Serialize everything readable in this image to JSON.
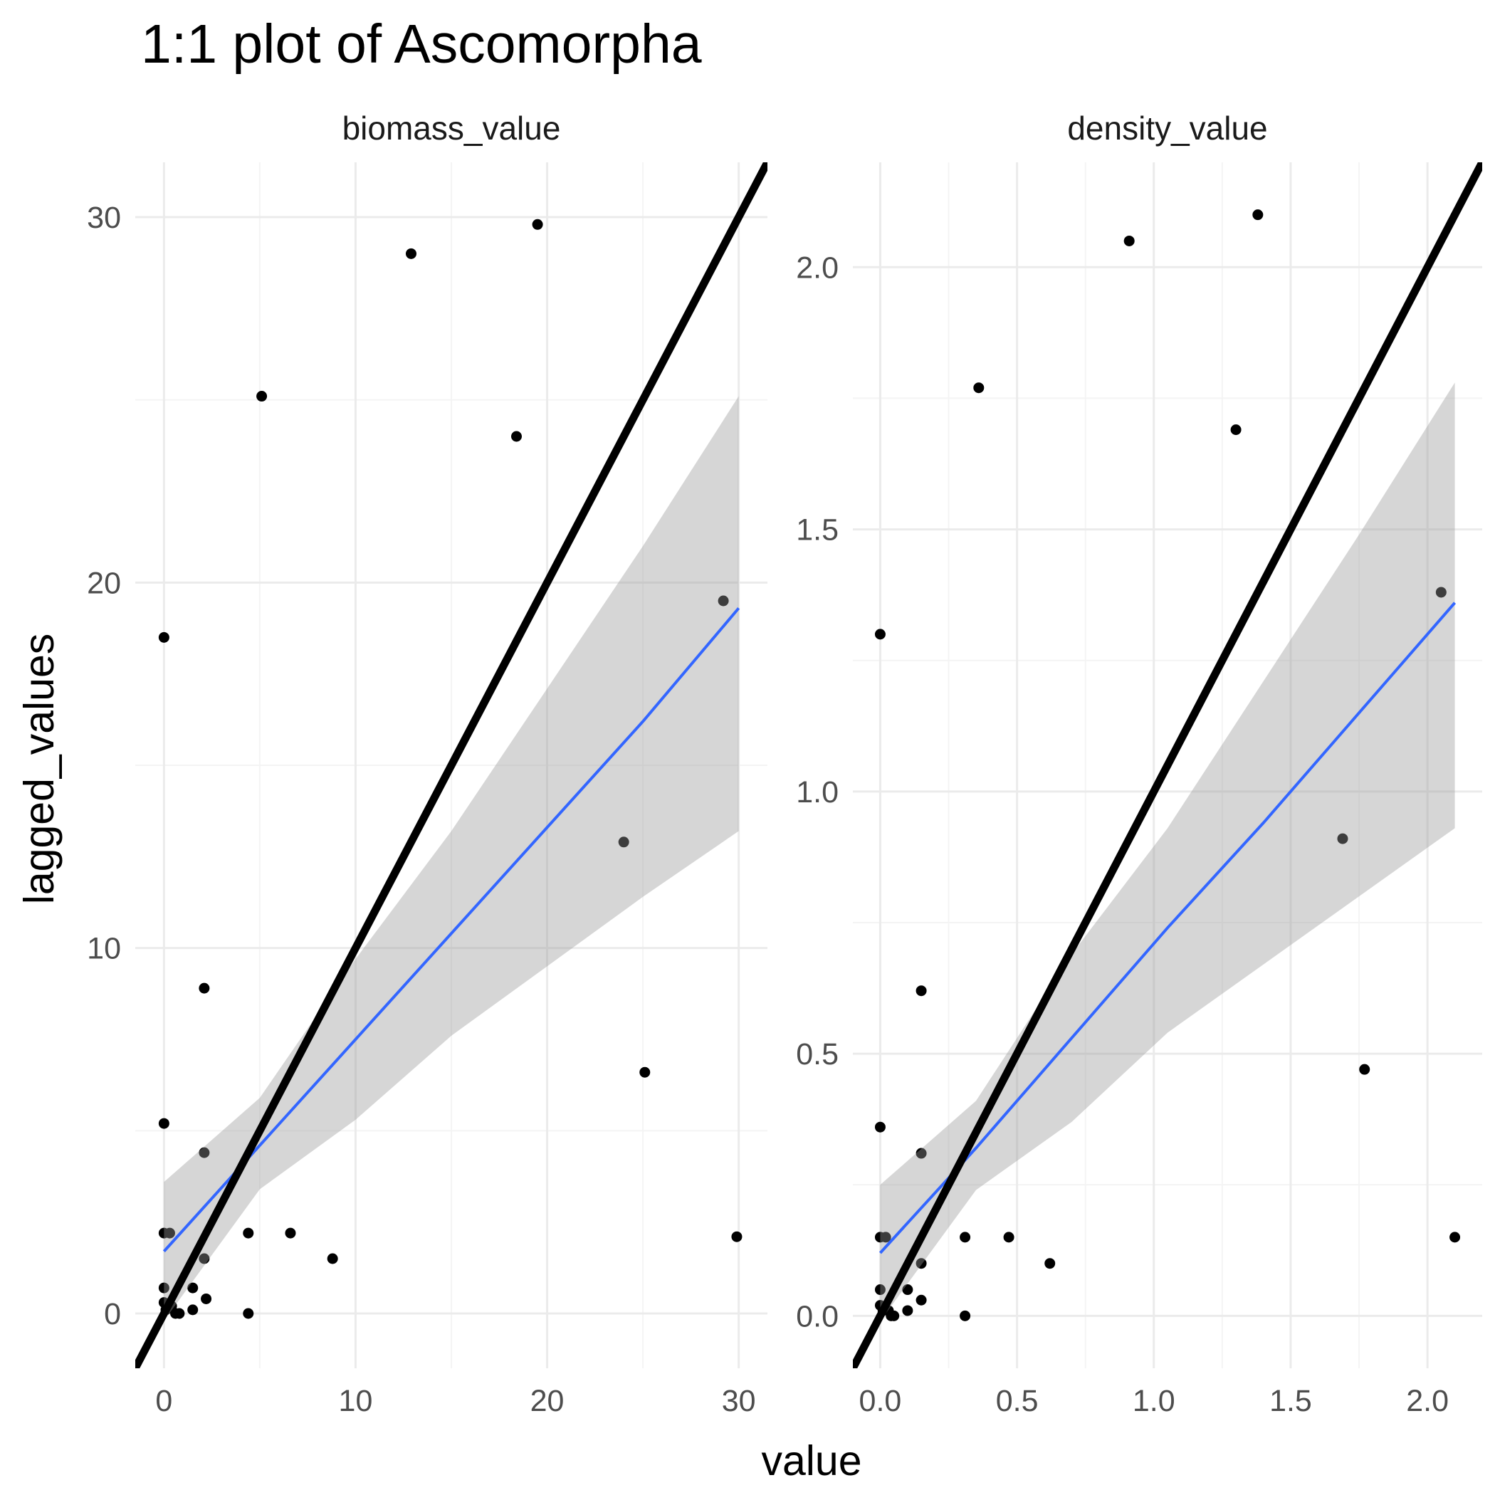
{
  "chart_data": {
    "type": "scatter",
    "title": "1:1 plot of Ascomorpha",
    "xlabel": "value",
    "ylabel": "lagged_values",
    "grid": true,
    "legend": "none",
    "colors": {
      "points": "#000000",
      "identity_line": "#000000",
      "smooth_line": "#3366FF",
      "ribbon": "#999999",
      "grid_major": "#EBEBEB",
      "grid_minor": "#F4F4F4",
      "text": "#4D4D4D"
    },
    "panels": [
      {
        "facet": "biomass_value",
        "xlim": [
          -1.5,
          31.5
        ],
        "ylim": [
          -1.5,
          31.5
        ],
        "x_ticks": [
          0,
          10,
          20,
          30
        ],
        "x_tick_labels": [
          "0",
          "10",
          "20",
          "30"
        ],
        "y_ticks": [
          0,
          10,
          20,
          30
        ],
        "y_tick_labels": [
          "0",
          "10",
          "20",
          "30"
        ],
        "x_minor": [
          5,
          15,
          25
        ],
        "y_minor": [
          5,
          15,
          25
        ],
        "points": [
          {
            "x": 0.0,
            "y": 18.5
          },
          {
            "x": 0.0,
            "y": 5.2
          },
          {
            "x": 0.0,
            "y": 2.2
          },
          {
            "x": 0.3,
            "y": 2.2
          },
          {
            "x": 0.0,
            "y": 0.7
          },
          {
            "x": 0.0,
            "y": 0.3
          },
          {
            "x": 0.1,
            "y": 0.1
          },
          {
            "x": 0.4,
            "y": 0.2
          },
          {
            "x": 0.6,
            "y": 0.0
          },
          {
            "x": 0.8,
            "y": 0.0
          },
          {
            "x": 1.5,
            "y": 0.7
          },
          {
            "x": 1.5,
            "y": 0.1
          },
          {
            "x": 2.1,
            "y": 8.9
          },
          {
            "x": 2.1,
            "y": 4.4
          },
          {
            "x": 2.1,
            "y": 1.5
          },
          {
            "x": 2.2,
            "y": 0.4
          },
          {
            "x": 4.4,
            "y": 0.0
          },
          {
            "x": 4.4,
            "y": 2.2
          },
          {
            "x": 5.1,
            "y": 25.1
          },
          {
            "x": 6.6,
            "y": 2.2
          },
          {
            "x": 8.8,
            "y": 1.5
          },
          {
            "x": 12.9,
            "y": 29.0
          },
          {
            "x": 18.4,
            "y": 24.0
          },
          {
            "x": 19.5,
            "y": 29.8
          },
          {
            "x": 24.0,
            "y": 12.9
          },
          {
            "x": 25.1,
            "y": 6.6
          },
          {
            "x": 29.2,
            "y": 19.5
          },
          {
            "x": 29.9,
            "y": 2.1
          }
        ],
        "identity_line": {
          "x": [
            -1.5,
            31.5
          ],
          "y": [
            -1.5,
            31.5
          ]
        },
        "smooth": {
          "x": [
            0,
            5,
            10,
            15,
            20,
            25,
            30
          ],
          "y": [
            1.7,
            4.6,
            7.5,
            10.4,
            13.3,
            16.2,
            19.3
          ],
          "lower": [
            -0.2,
            3.4,
            5.3,
            7.6,
            9.5,
            11.4,
            13.2
          ],
          "upper": [
            3.6,
            5.9,
            9.7,
            13.2,
            17.1,
            21.0,
            25.1
          ]
        }
      },
      {
        "facet": "density_value",
        "xlim": [
          -0.1,
          2.2
        ],
        "ylim": [
          -0.1,
          2.2
        ],
        "x_ticks": [
          0,
          0.5,
          1.0,
          1.5,
          2.0
        ],
        "x_tick_labels": [
          "0.0",
          "0.5",
          "1.0",
          "1.5",
          "2.0"
        ],
        "y_ticks": [
          0,
          0.5,
          1.0,
          1.5,
          2.0
        ],
        "y_tick_labels": [
          "0.0",
          "0.5",
          "1.0",
          "1.5",
          "2.0"
        ],
        "x_minor": [
          0.25,
          0.75,
          1.25,
          1.75
        ],
        "y_minor": [
          0.25,
          0.75,
          1.25,
          1.75
        ],
        "points": [
          {
            "x": 0.0,
            "y": 1.3
          },
          {
            "x": 0.0,
            "y": 0.36
          },
          {
            "x": 0.0,
            "y": 0.15
          },
          {
            "x": 0.02,
            "y": 0.15
          },
          {
            "x": 0.0,
            "y": 0.05
          },
          {
            "x": 0.0,
            "y": 0.02
          },
          {
            "x": 0.01,
            "y": 0.01
          },
          {
            "x": 0.03,
            "y": 0.01
          },
          {
            "x": 0.04,
            "y": 0.0
          },
          {
            "x": 0.05,
            "y": 0.0
          },
          {
            "x": 0.1,
            "y": 0.05
          },
          {
            "x": 0.1,
            "y": 0.01
          },
          {
            "x": 0.15,
            "y": 0.62
          },
          {
            "x": 0.15,
            "y": 0.31
          },
          {
            "x": 0.15,
            "y": 0.1
          },
          {
            "x": 0.15,
            "y": 0.03
          },
          {
            "x": 0.31,
            "y": 0.0
          },
          {
            "x": 0.31,
            "y": 0.15
          },
          {
            "x": 0.36,
            "y": 1.77
          },
          {
            "x": 0.47,
            "y": 0.15
          },
          {
            "x": 0.62,
            "y": 0.1
          },
          {
            "x": 0.91,
            "y": 2.05
          },
          {
            "x": 1.3,
            "y": 1.69
          },
          {
            "x": 1.38,
            "y": 2.1
          },
          {
            "x": 1.69,
            "y": 0.91
          },
          {
            "x": 1.77,
            "y": 0.47
          },
          {
            "x": 2.05,
            "y": 1.38
          },
          {
            "x": 2.1,
            "y": 0.15
          }
        ],
        "identity_line": {
          "x": [
            -0.1,
            2.2
          ],
          "y": [
            -0.1,
            2.2
          ]
        },
        "smooth": {
          "x": [
            0,
            0.35,
            0.7,
            1.05,
            1.4,
            1.75,
            2.1
          ],
          "y": [
            0.12,
            0.32,
            0.53,
            0.74,
            0.94,
            1.15,
            1.36
          ],
          "lower": [
            -0.01,
            0.24,
            0.37,
            0.54,
            0.67,
            0.8,
            0.93
          ],
          "upper": [
            0.25,
            0.41,
            0.69,
            0.93,
            1.21,
            1.49,
            1.78
          ]
        }
      }
    ]
  }
}
